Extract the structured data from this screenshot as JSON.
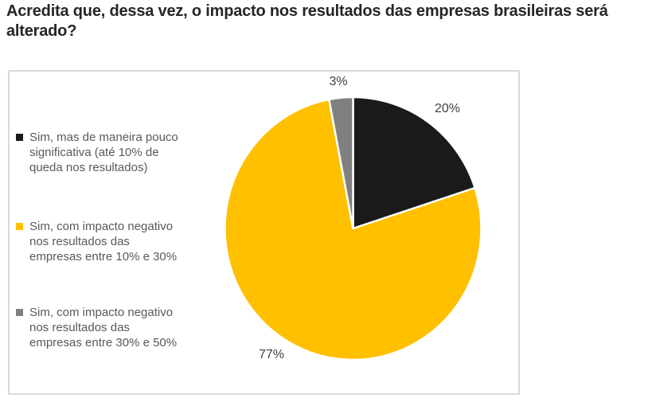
{
  "header": {
    "title": "Acredita que, dessa vez, o impacto nos resultados das empresas brasileiras será alterado?"
  },
  "colors": {
    "title_text": "#262626",
    "legend_text": "#595959",
    "value_label_text": "#404040",
    "chart_border": "#d9d9d9",
    "slice_separator": "#ffffff"
  },
  "chart_data": {
    "type": "pie",
    "title": "Acredita que, dessa vez, o impacto nos resultados das empresas brasileiras será alterado?",
    "direction": "clockwise",
    "start_angle_deg": 0,
    "legend_position": "left",
    "values_unit": "%",
    "slices": [
      {
        "label": "Sim, mas de maneira pouco significativa (até 10% de queda nos resultados)",
        "label_lines": [
          "Sim, mas de maneira pouco",
          "significativa (até 10% de",
          "queda nos resultados)"
        ],
        "value": 20,
        "value_label": "20%",
        "color": "#1a1a1a"
      },
      {
        "label": "Sim, com impacto negativo nos resultados das empresas entre 10% e 30%",
        "label_lines": [
          "Sim, com impacto negativo",
          "nos resultados das",
          "empresas entre 10% e 30%"
        ],
        "value": 77,
        "value_label": "77%",
        "color": "#ffc000"
      },
      {
        "label": "Sim, com impacto negativo nos resultados das empresas entre 30% e 50%",
        "label_lines": [
          "Sim, com impacto negativo",
          "nos resultados das",
          "empresas entre 30% e 50%"
        ],
        "value": 3,
        "value_label": "3%",
        "color": "#808080"
      }
    ]
  }
}
